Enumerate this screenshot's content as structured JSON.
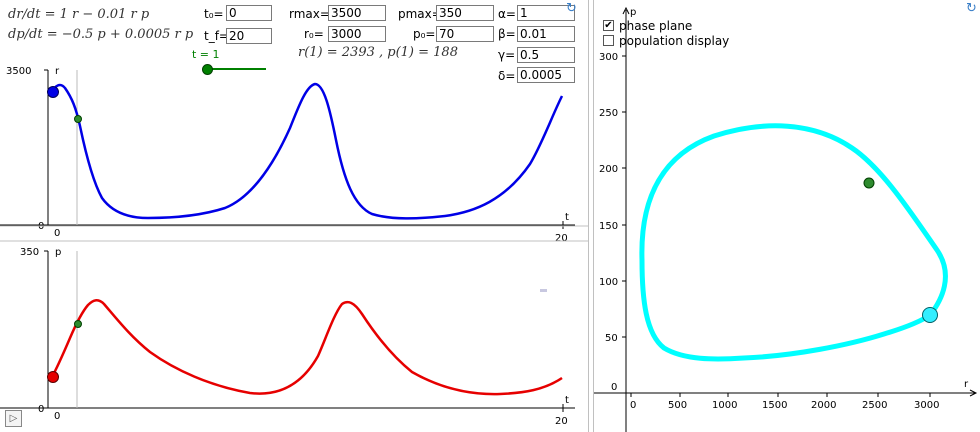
{
  "equations": {
    "dr": "dr/dt = 1 r − 0.01 r p",
    "dp": "dp/dt = −0.5 p + 0.0005 r p"
  },
  "params": {
    "t0_label": "t₀=",
    "t0": "0",
    "tf_label": "t_f=",
    "tf": "20",
    "rmax_label": "rmax=",
    "rmax": "3500",
    "pmax_label": "pmax=",
    "pmax": "350",
    "r0_label": "r₀=",
    "r0": "3000",
    "p0_label": "p₀=",
    "p0": "70",
    "alpha_label": "α=",
    "alpha": "1",
    "beta_label": "β=",
    "beta": "0.01",
    "gamma_label": "γ=",
    "gamma": "0.5",
    "delta_label": "δ=",
    "delta": "0.0005"
  },
  "slider": {
    "label": "t = 1",
    "value_fraction": 0.05
  },
  "readout": "r(1) = 2393 , p(1) = 188",
  "options": {
    "phase_plane": {
      "label": "phase plane",
      "checked": true
    },
    "population": {
      "label": "population display",
      "checked": false
    }
  },
  "graph_r": {
    "ymax_label": "3500",
    "axis_label": "r",
    "origin": "0",
    "x0": "0",
    "tlabel": "t",
    "tmax": "20"
  },
  "graph_p": {
    "ymax_label": "350",
    "axis_label": "p",
    "origin": "0",
    "x0": "0",
    "tlabel": "t",
    "tmax": "20"
  },
  "phase": {
    "x_axis_label": "r",
    "y_axis_label": "p",
    "x_ticks": [
      "0",
      "500",
      "1000",
      "1500",
      "2000",
      "2500",
      "3000"
    ],
    "y_ticks": [
      "0",
      "50",
      "100",
      "150",
      "200",
      "250",
      "300"
    ]
  },
  "colors": {
    "r_curve": "#0000e6",
    "p_curve": "#e60000",
    "orbit": "#00ffff",
    "marker": "#008000"
  }
}
